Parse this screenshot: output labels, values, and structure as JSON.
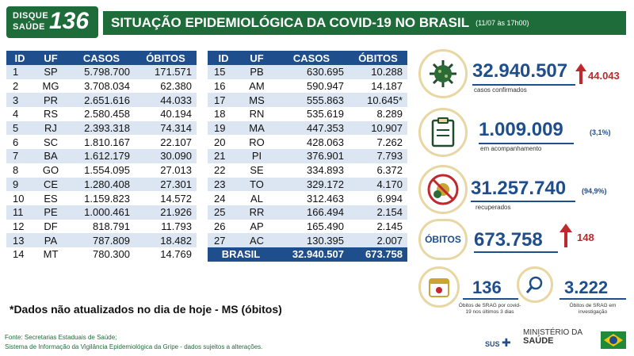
{
  "logo": {
    "line1": "DISQUE",
    "line2": "SAÚDE",
    "number": "136"
  },
  "header": {
    "title": "SITUAÇÃO EPIDEMIOLÓGICA DA COVID-19 NO BRASIL",
    "date": "(11/07 às 17h00)"
  },
  "table": {
    "headers": {
      "id": "ID",
      "uf": "UF",
      "casos": "CASOS",
      "obitos": "ÓBITOS"
    },
    "left_rows": [
      {
        "id": "1",
        "uf": "SP",
        "casos": "5.798.700",
        "obitos": "171.571"
      },
      {
        "id": "2",
        "uf": "MG",
        "casos": "3.708.034",
        "obitos": "62.380"
      },
      {
        "id": "3",
        "uf": "PR",
        "casos": "2.651.616",
        "obitos": "44.033"
      },
      {
        "id": "4",
        "uf": "RS",
        "casos": "2.580.458",
        "obitos": "40.194"
      },
      {
        "id": "5",
        "uf": "RJ",
        "casos": "2.393.318",
        "obitos": "74.314"
      },
      {
        "id": "6",
        "uf": "SC",
        "casos": "1.810.167",
        "obitos": "22.107"
      },
      {
        "id": "7",
        "uf": "BA",
        "casos": "1.612.179",
        "obitos": "30.090"
      },
      {
        "id": "8",
        "uf": "GO",
        "casos": "1.554.095",
        "obitos": "27.013"
      },
      {
        "id": "9",
        "uf": "CE",
        "casos": "1.280.408",
        "obitos": "27.301"
      },
      {
        "id": "10",
        "uf": "ES",
        "casos": "1.159.823",
        "obitos": "14.572"
      },
      {
        "id": "11",
        "uf": "PE",
        "casos": "1.000.461",
        "obitos": "21.926"
      },
      {
        "id": "12",
        "uf": "DF",
        "casos": "818.791",
        "obitos": "11.793"
      },
      {
        "id": "13",
        "uf": "PA",
        "casos": "787.809",
        "obitos": "18.482"
      },
      {
        "id": "14",
        "uf": "MT",
        "casos": "780.300",
        "obitos": "14.769"
      }
    ],
    "right_rows": [
      {
        "id": "15",
        "uf": "PB",
        "casos": "630.695",
        "obitos": "10.288"
      },
      {
        "id": "16",
        "uf": "AM",
        "casos": "590.947",
        "obitos": "14.187"
      },
      {
        "id": "17",
        "uf": "MS",
        "casos": "555.863",
        "obitos": "10.645*"
      },
      {
        "id": "18",
        "uf": "RN",
        "casos": "535.619",
        "obitos": "8.289"
      },
      {
        "id": "19",
        "uf": "MA",
        "casos": "447.353",
        "obitos": "10.907"
      },
      {
        "id": "20",
        "uf": "RO",
        "casos": "428.063",
        "obitos": "7.262"
      },
      {
        "id": "21",
        "uf": "PI",
        "casos": "376.901",
        "obitos": "7.793"
      },
      {
        "id": "22",
        "uf": "SE",
        "casos": "334.893",
        "obitos": "6.372"
      },
      {
        "id": "23",
        "uf": "TO",
        "casos": "329.172",
        "obitos": "4.170"
      },
      {
        "id": "24",
        "uf": "AL",
        "casos": "312.463",
        "obitos": "6.994"
      },
      {
        "id": "25",
        "uf": "RR",
        "casos": "166.494",
        "obitos": "2.154"
      },
      {
        "id": "26",
        "uf": "AP",
        "casos": "165.490",
        "obitos": "2.145"
      },
      {
        "id": "27",
        "uf": "AC",
        "casos": "130.395",
        "obitos": "2.007"
      }
    ],
    "total": {
      "label": "BRASIL",
      "casos": "32.940.507",
      "obitos": "673.758"
    }
  },
  "note": "*Dados não atualizados no dia de hoje - MS (óbitos)",
  "source": {
    "line1": "Fonte: Secretarias Estaduais de Saúde;",
    "line2": "Sistema de Informação da Vigilância Epidemiológica da Gripe - dados sujeitos a alterações."
  },
  "stats": {
    "confirmed": {
      "value": "32.940.507",
      "label": "casos confirmados",
      "delta": "44.043",
      "icon": "virus-icon"
    },
    "monitoring": {
      "value": "1.009.009",
      "label": "em acompanhamento",
      "pct": "(3,1%)",
      "icon": "clipboard-icon"
    },
    "recovered": {
      "value": "31.257.740",
      "label": "recuperados",
      "pct": "(94,9%)",
      "icon": "crossed-virus-icon"
    },
    "deaths": {
      "badge": "ÓBITOS",
      "value": "673.758",
      "delta": "148"
    },
    "srag_deaths": {
      "value": "136",
      "label": "Óbitos de SRAG por covid-19 nos últimos 3 dias",
      "icon": "calendar-icon"
    },
    "srag_investigation": {
      "value": "3.222",
      "label": "Óbitos de SRAG em investigação",
      "icon": "magnifier-icon"
    }
  },
  "footer": {
    "sus": "SUS",
    "ministerio_line1": "MINISTÉRIO DA",
    "ministerio_line2": "SAÚDE"
  },
  "colors": {
    "green": "#1f6c3b",
    "blue": "#1f4e8c",
    "red": "#c0282d",
    "row_alt": "#dce6f2"
  }
}
